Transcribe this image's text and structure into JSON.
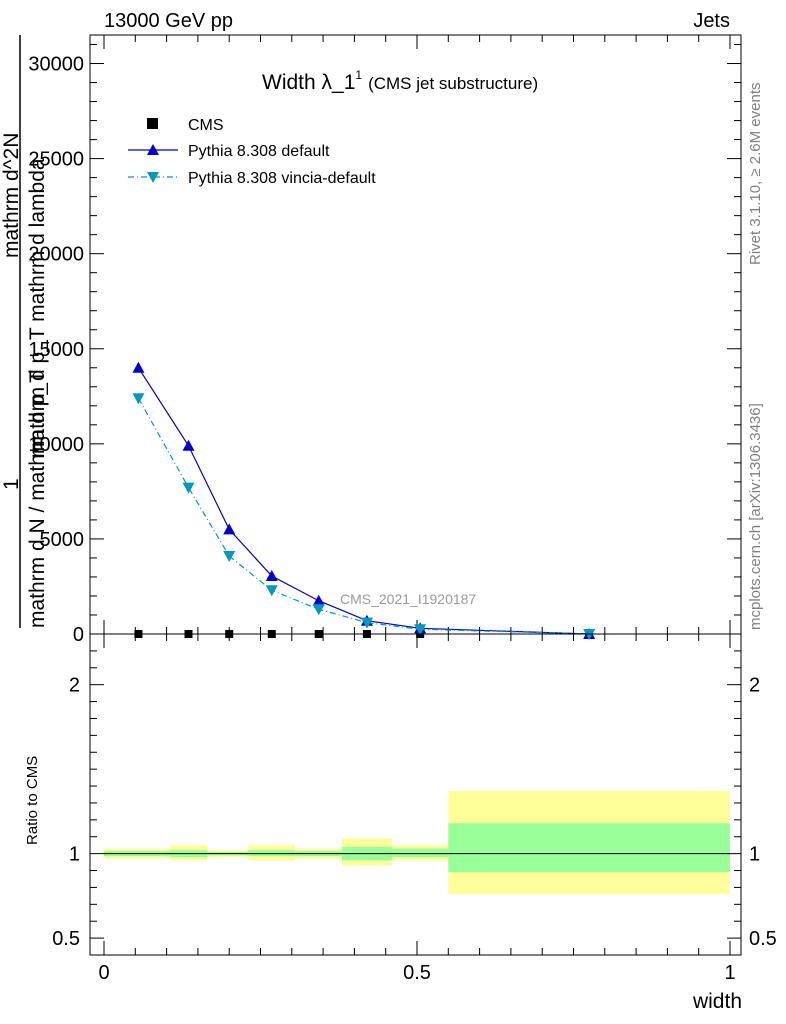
{
  "header": {
    "left": "13000 GeV pp",
    "right": "Jets"
  },
  "side_labels": {
    "rivet": "Rivet 3.1.10, ≥ 2.6M events",
    "mcplots": "mcplots.cern.ch [arXiv:1306.3436]"
  },
  "chart_data": [
    {
      "type": "line",
      "title": "Width λ_1",
      "title_superscript": "1",
      "subtitle": "(CMS jet substructure)",
      "watermark": "CMS_2021_I1920187",
      "ylabel_numerator": "1",
      "ylabel_denominator": "mathrm d N / mathrm d p_T",
      "ylabel_right": "mathrm d^2N",
      "ylabel_right2": "mathrm d p_T mathrm d lambda",
      "xlim": [
        0,
        1
      ],
      "ylim": [
        0,
        31500
      ],
      "yticks": [
        0,
        5000,
        10000,
        15000,
        20000,
        25000,
        30000
      ],
      "ytick_labels": [
        "0",
        "5000",
        "10000",
        "15000",
        "20000",
        "25000",
        "30000"
      ],
      "series": [
        {
          "name": "CMS",
          "marker": "square",
          "color": "#000000",
          "x": [
            0.055,
            0.135,
            0.2,
            0.268,
            0.343,
            0.42,
            0.505,
            0.775
          ],
          "y": [
            0,
            0,
            0,
            0,
            0,
            0,
            0,
            0
          ]
        },
        {
          "name": "Pythia 8.308 default",
          "marker": "triangle-up",
          "color": "#0000cc",
          "dash": "solid",
          "x": [
            0.055,
            0.135,
            0.2,
            0.268,
            0.343,
            0.42,
            0.505,
            0.775
          ],
          "y": [
            14000,
            9900,
            5500,
            3050,
            1750,
            700,
            300,
            0
          ]
        },
        {
          "name": "Pythia 8.308 vincia-default",
          "marker": "triangle-down",
          "color": "#0099bb",
          "dash": "dashdot",
          "x": [
            0.055,
            0.135,
            0.2,
            0.268,
            0.343,
            0.42,
            0.505,
            0.775
          ],
          "y": [
            12400,
            7700,
            4100,
            2300,
            1300,
            600,
            250,
            0
          ]
        }
      ]
    },
    {
      "type": "area",
      "ylabel": "Ratio to CMS",
      "xlabel": "width",
      "xlim": [
        0,
        1
      ],
      "ylim": [
        0.4,
        2.3
      ],
      "yticks": [
        0.5,
        1,
        2
      ],
      "ytick_labels": [
        "0.5",
        "1",
        "2"
      ],
      "xticks": [
        0,
        0.5,
        1
      ],
      "xtick_labels": [
        "0",
        "0.5",
        "1"
      ],
      "band_colors": {
        "outer": "#ffff99",
        "inner": "#99ff99"
      },
      "bins": [
        {
          "lo": 0.0,
          "hi": 0.105,
          "outer": [
            0.97,
            1.03
          ],
          "inner": [
            0.985,
            1.015
          ]
        },
        {
          "lo": 0.105,
          "hi": 0.165,
          "outer": [
            0.96,
            1.05
          ],
          "inner": [
            0.98,
            1.02
          ]
        },
        {
          "lo": 0.165,
          "hi": 0.23,
          "outer": [
            0.98,
            1.02
          ],
          "inner": [
            0.99,
            1.01
          ]
        },
        {
          "lo": 0.23,
          "hi": 0.305,
          "outer": [
            0.96,
            1.05
          ],
          "inner": [
            0.985,
            1.02
          ]
        },
        {
          "lo": 0.305,
          "hi": 0.38,
          "outer": [
            0.97,
            1.03
          ],
          "inner": [
            0.985,
            1.015
          ]
        },
        {
          "lo": 0.38,
          "hi": 0.46,
          "outer": [
            0.93,
            1.09
          ],
          "inner": [
            0.96,
            1.04
          ]
        },
        {
          "lo": 0.46,
          "hi": 0.55,
          "outer": [
            0.96,
            1.05
          ],
          "inner": [
            0.98,
            1.03
          ]
        },
        {
          "lo": 0.55,
          "hi": 1.0,
          "outer": [
            0.76,
            1.37
          ],
          "inner": [
            0.89,
            1.18
          ]
        }
      ],
      "reference_line": 1
    }
  ]
}
